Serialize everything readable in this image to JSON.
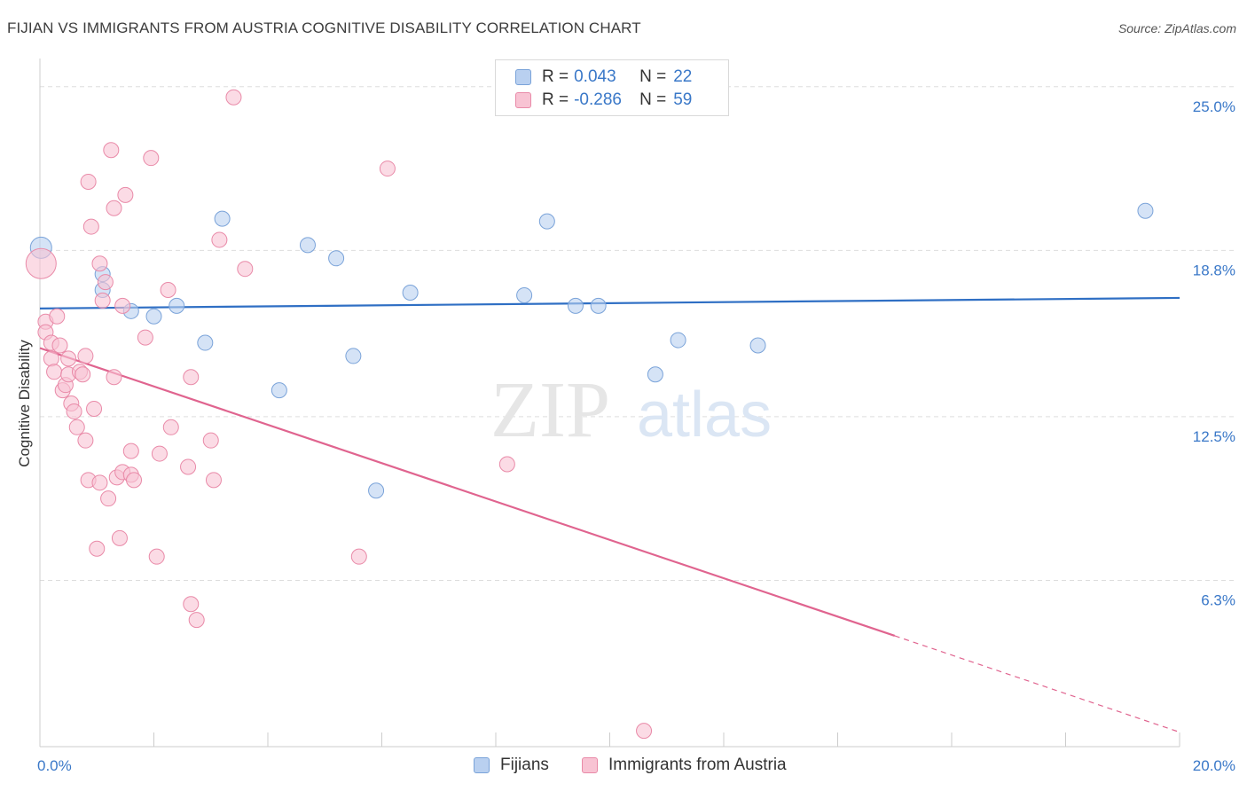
{
  "title": "FIJIAN VS IMMIGRANTS FROM AUSTRIA COGNITIVE DISABILITY CORRELATION CHART",
  "source": "Source: ZipAtlas.com",
  "watermark": {
    "zip": "ZIP",
    "atlas": "atlas"
  },
  "legend_top": {
    "rows": [
      {
        "r_label": "R =",
        "r_value": "0.043",
        "n_label": "N =",
        "n_value": "22"
      },
      {
        "r_label": "R =",
        "r_value": "-0.286",
        "n_label": "N =",
        "n_value": "59"
      }
    ]
  },
  "colors": {
    "fijian_fill": "#b9d0f0",
    "fijian_stroke": "#7aa3d9",
    "fijian_line": "#2f6fc4",
    "austria_fill": "#f8c3d3",
    "austria_stroke": "#e98aa8",
    "austria_line": "#e0648f",
    "tick_label": "#3a78c8",
    "grid": "#dddddd"
  },
  "chart_data": {
    "type": "scatter",
    "title": "FIJIAN VS IMMIGRANTS FROM AUSTRIA COGNITIVE DISABILITY CORRELATION CHART",
    "xlabel": "",
    "ylabel": "Cognitive Disability",
    "xlim": [
      0,
      20
    ],
    "ylim": [
      0,
      25.9
    ],
    "x_tick_labels": [
      "0.0%",
      "20.0%"
    ],
    "y_ticks": [
      6.3,
      12.5,
      18.8,
      25.0
    ],
    "y_tick_labels": [
      "6.3%",
      "12.5%",
      "18.8%",
      "25.0%"
    ],
    "grid": true,
    "legend_placement": "bottom",
    "series": [
      {
        "name": "Fijians",
        "points": [
          [
            0.02,
            18.9
          ],
          [
            1.1,
            17.9
          ],
          [
            1.1,
            17.3
          ],
          [
            1.6,
            16.5
          ],
          [
            2.0,
            16.3
          ],
          [
            2.4,
            16.7
          ],
          [
            2.9,
            15.3
          ],
          [
            3.2,
            20.0
          ],
          [
            4.2,
            13.5
          ],
          [
            4.7,
            19.0
          ],
          [
            5.2,
            18.5
          ],
          [
            5.5,
            14.8
          ],
          [
            5.9,
            9.7
          ],
          [
            6.5,
            17.2
          ],
          [
            8.5,
            17.1
          ],
          [
            8.9,
            19.9
          ],
          [
            9.4,
            16.7
          ],
          [
            9.8,
            16.7
          ],
          [
            10.8,
            14.1
          ],
          [
            11.2,
            15.4
          ],
          [
            12.6,
            15.2
          ],
          [
            19.4,
            20.3
          ]
        ],
        "trend": {
          "x0": 0,
          "y0": 16.6,
          "x1": 20,
          "y1": 17.0
        }
      },
      {
        "name": "Immigrants from Austria",
        "points": [
          [
            0.02,
            18.3
          ],
          [
            0.1,
            16.1
          ],
          [
            0.1,
            15.7
          ],
          [
            0.2,
            15.3
          ],
          [
            0.2,
            14.7
          ],
          [
            0.25,
            14.2
          ],
          [
            0.3,
            16.3
          ],
          [
            0.35,
            15.2
          ],
          [
            0.4,
            13.5
          ],
          [
            0.45,
            13.7
          ],
          [
            0.5,
            14.7
          ],
          [
            0.5,
            14.1
          ],
          [
            0.55,
            13.0
          ],
          [
            0.6,
            12.7
          ],
          [
            0.65,
            12.1
          ],
          [
            0.7,
            14.2
          ],
          [
            0.75,
            14.1
          ],
          [
            0.8,
            11.6
          ],
          [
            0.8,
            14.8
          ],
          [
            0.85,
            21.4
          ],
          [
            0.85,
            10.1
          ],
          [
            0.9,
            19.7
          ],
          [
            0.95,
            12.8
          ],
          [
            1.0,
            7.5
          ],
          [
            1.05,
            18.3
          ],
          [
            1.05,
            10.0
          ],
          [
            1.1,
            16.9
          ],
          [
            1.15,
            17.6
          ],
          [
            1.2,
            9.4
          ],
          [
            1.25,
            22.6
          ],
          [
            1.3,
            14.0
          ],
          [
            1.3,
            20.4
          ],
          [
            1.35,
            10.2
          ],
          [
            1.4,
            7.9
          ],
          [
            1.45,
            10.4
          ],
          [
            1.45,
            16.7
          ],
          [
            1.5,
            20.9
          ],
          [
            1.6,
            11.2
          ],
          [
            1.6,
            10.3
          ],
          [
            1.65,
            10.1
          ],
          [
            1.85,
            15.5
          ],
          [
            1.95,
            22.3
          ],
          [
            2.05,
            7.2
          ],
          [
            2.1,
            11.1
          ],
          [
            2.25,
            17.3
          ],
          [
            2.3,
            12.1
          ],
          [
            2.6,
            10.6
          ],
          [
            2.65,
            14.0
          ],
          [
            2.65,
            5.4
          ],
          [
            2.75,
            4.8
          ],
          [
            3.0,
            11.6
          ],
          [
            3.05,
            10.1
          ],
          [
            3.15,
            19.2
          ],
          [
            3.4,
            24.6
          ],
          [
            3.6,
            18.1
          ],
          [
            5.6,
            7.2
          ],
          [
            6.1,
            21.9
          ],
          [
            8.2,
            10.7
          ],
          [
            10.6,
            0.6
          ]
        ],
        "trend": {
          "x0": 0,
          "y0": 15.1,
          "x1": 15.0,
          "y1": 4.2,
          "dash_x1": 20,
          "dash_y1": 0.55
        }
      }
    ]
  }
}
